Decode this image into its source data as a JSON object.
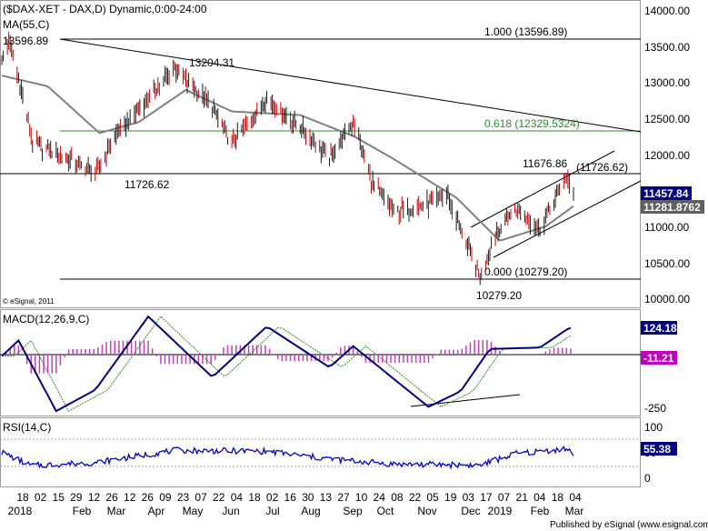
{
  "title": "($DAX-XET - DAX,D) Dynamic,0:00-24:00",
  "ma_label": "MA(55,C)",
  "watermark": "© eSignal, 2011",
  "footer": "Published by eSignal (www.esignal.com)",
  "colors": {
    "price": "#1a1a1a",
    "ma": "#808080",
    "trendline": "#000000",
    "fib618": "#2e8b2e",
    "macd_line": "#000080",
    "macd_signal": "#2e8b2e",
    "macd_hist": "#c040c0",
    "rsi": "#0000cc",
    "badge_blue": "#000080",
    "badge_grey": "#606060",
    "badge_magenta": "#c000c0"
  },
  "price_panel": {
    "yticks": [
      "14000.00",
      "13500.00",
      "13000.00",
      "12500.00",
      "12000.00",
      "11500.00",
      "11000.00",
      "10500.00",
      "10000.00"
    ],
    "annotations": {
      "high_label": "13596.89",
      "mid_high_label": "13204.31",
      "low_label_mar": "11726.62",
      "recent_high_label": "11676.86",
      "low_label_dec": "10279.20",
      "fib_100": "1.000 (13596.89)",
      "fib_618": "0.618 (12329.5324)",
      "fib_000": "0.000 (10279.20)",
      "level_11726": "(11726.62)"
    },
    "badges": {
      "last": "11457.84",
      "ma": "11281.8762"
    }
  },
  "macd_panel": {
    "label": "MACD(12,26,9,C)",
    "yticks": [
      "-250"
    ],
    "badges": {
      "macd": "124.18",
      "hist": "-11.21"
    }
  },
  "rsi_panel": {
    "label": "RSI(14,C)",
    "yticks": [
      "100",
      "50",
      "0"
    ],
    "badges": {
      "rsi": "55.38"
    }
  },
  "x_axis": {
    "ticks": [
      "18",
      "02",
      "15",
      "29",
      "12",
      "26",
      "12",
      "26",
      "09",
      "23",
      "07",
      "22",
      "04",
      "18",
      "02",
      "16",
      "30",
      "13",
      "27",
      "10",
      "24",
      "08",
      "22",
      "05",
      "19",
      "03",
      "17",
      "07",
      "21",
      "04",
      "18",
      "04"
    ],
    "months": [
      "2018",
      "Feb",
      "Mar",
      "Apr",
      "May",
      "Jun",
      "Jul",
      "Aug",
      "Sep",
      "Oct",
      "Nov",
      "Dec",
      "2019",
      "Feb",
      "Mar"
    ]
  },
  "chart_data": {
    "type": "line",
    "title": "($DAX-XET - DAX,D) Dynamic,0:00-24:00",
    "series": [
      {
        "name": "DAX",
        "x": [
          "2018-01-18",
          "2018-01-23",
          "2018-02-02",
          "2018-02-09",
          "2018-03-01",
          "2018-03-26",
          "2018-04-09",
          "2018-05-22",
          "2018-06-18",
          "2018-07-02",
          "2018-07-27",
          "2018-08-24",
          "2018-09-10",
          "2018-09-27",
          "2018-10-11",
          "2018-10-26",
          "2018-11-19",
          "2018-12-03",
          "2018-12-27",
          "2019-01-07",
          "2019-01-21",
          "2019-02-08",
          "2019-02-26",
          "2019-03-04"
        ],
        "values": [
          13300,
          13596.89,
          12800,
          12150,
          12000,
          11726.62,
          12250,
          13204.31,
          12650,
          12150,
          12800,
          12300,
          11950,
          12450,
          11600,
          11200,
          11300,
          11450,
          10279.2,
          10900,
          11250,
          10950,
          11676.86,
          11457.84
        ]
      },
      {
        "name": "MA(55,C)",
        "x": [
          "2018-01-18",
          "2018-02-20",
          "2018-03-29",
          "2018-04-26",
          "2018-05-30",
          "2018-07-02",
          "2018-08-20",
          "2018-09-28",
          "2018-10-25",
          "2018-12-10",
          "2019-01-10",
          "2019-02-12",
          "2019-03-04"
        ],
        "values": [
          13100,
          12950,
          12300,
          12450,
          12900,
          12600,
          12550,
          12250,
          11950,
          11400,
          10800,
          11000,
          11281.88
        ]
      }
    ],
    "ylim": [
      9950,
      14050
    ],
    "fib_levels": [
      {
        "ratio": "1.000",
        "value": 13596.89
      },
      {
        "ratio": "0.618",
        "value": 12329.5324
      },
      {
        "ratio": "0.000",
        "value": 10279.2
      }
    ],
    "horizontal_levels": [
      11726.62
    ],
    "macd": {
      "x": [
        "2018-01-18",
        "2018-01-30",
        "2018-02-26",
        "2018-03-26",
        "2018-05-03",
        "2018-06-18",
        "2018-07-27",
        "2018-09-10",
        "2018-09-27",
        "2018-11-20",
        "2018-12-13",
        "2019-01-03",
        "2019-02-08",
        "2019-03-01"
      ],
      "values": [
        -10,
        100,
        -400,
        -250,
        270,
        -160,
        200,
        -90,
        60,
        -370,
        -260,
        40,
        50,
        190
      ],
      "last_macd": 124.18,
      "last_hist": -11.21
    },
    "rsi": {
      "x": [
        "2018-01-18",
        "2018-02-08",
        "2018-03-26",
        "2018-05-22",
        "2018-07-27",
        "2018-09-10",
        "2018-10-26",
        "2018-12-27",
        "2019-01-21",
        "2019-02-26",
        "2019-03-04"
      ],
      "values": [
        58,
        32,
        38,
        62,
        60,
        45,
        35,
        33,
        55,
        65,
        55.38
      ],
      "ylim": [
        0,
        100
      ],
      "last": 55.38
    }
  }
}
